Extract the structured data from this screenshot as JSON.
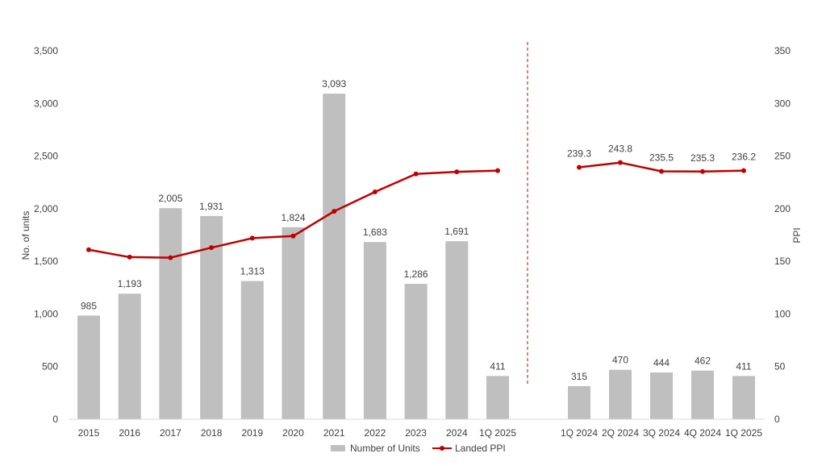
{
  "chart_data": {
    "type": "bar",
    "categories": [
      "2015",
      "2016",
      "2017",
      "2018",
      "2019",
      "2020",
      "2021",
      "2022",
      "2023",
      "2024",
      "1Q 2025",
      "1Q 2024",
      "2Q 2024",
      "3Q 2024",
      "4Q 2024",
      "1Q 2025"
    ],
    "series": [
      {
        "name": "Number of Units",
        "type": "bar",
        "axis": "left",
        "values": [
          985,
          1193,
          2005,
          1931,
          1313,
          1824,
          3093,
          1683,
          1286,
          1691,
          411,
          315,
          470,
          444,
          462,
          411
        ],
        "labels": [
          "985",
          "1,193",
          "2,005",
          "1,931",
          "1,313",
          "1,824",
          "3,093",
          "1,683",
          "1,286",
          "1,691",
          "411",
          "315",
          "470",
          "444",
          "462",
          "411"
        ],
        "color": "#bfbfbf"
      },
      {
        "name": "Landed PPI",
        "type": "line",
        "axis": "right",
        "segments": [
          {
            "categories": [
              0,
              1,
              2,
              3,
              4,
              5,
              6,
              7,
              8,
              9,
              10
            ],
            "values": [
              161,
              154,
              153.5,
              163,
              172,
              174,
              197.5,
              216,
              233,
              235,
              236.2
            ],
            "labels": []
          },
          {
            "categories": [
              11,
              12,
              13,
              14,
              15
            ],
            "values": [
              239.3,
              243.8,
              235.5,
              235.3,
              236.2
            ],
            "labels": [
              "239.3",
              "243.8",
              "235.5",
              "235.3",
              "236.2"
            ]
          }
        ],
        "color": "#c00000"
      }
    ],
    "ylabel": "No. of units",
    "y2label": "PPI",
    "ylim": [
      0,
      3500
    ],
    "y2lim": [
      0,
      350
    ],
    "yticks": [
      "0",
      "500",
      "1,000",
      "1,500",
      "2,000",
      "2,500",
      "3,000",
      "3,500"
    ],
    "y2ticks": [
      "0",
      "50",
      "100",
      "150",
      "200",
      "250",
      "300",
      "350"
    ],
    "divider_after_category": 10,
    "legend_position": "bottom"
  }
}
